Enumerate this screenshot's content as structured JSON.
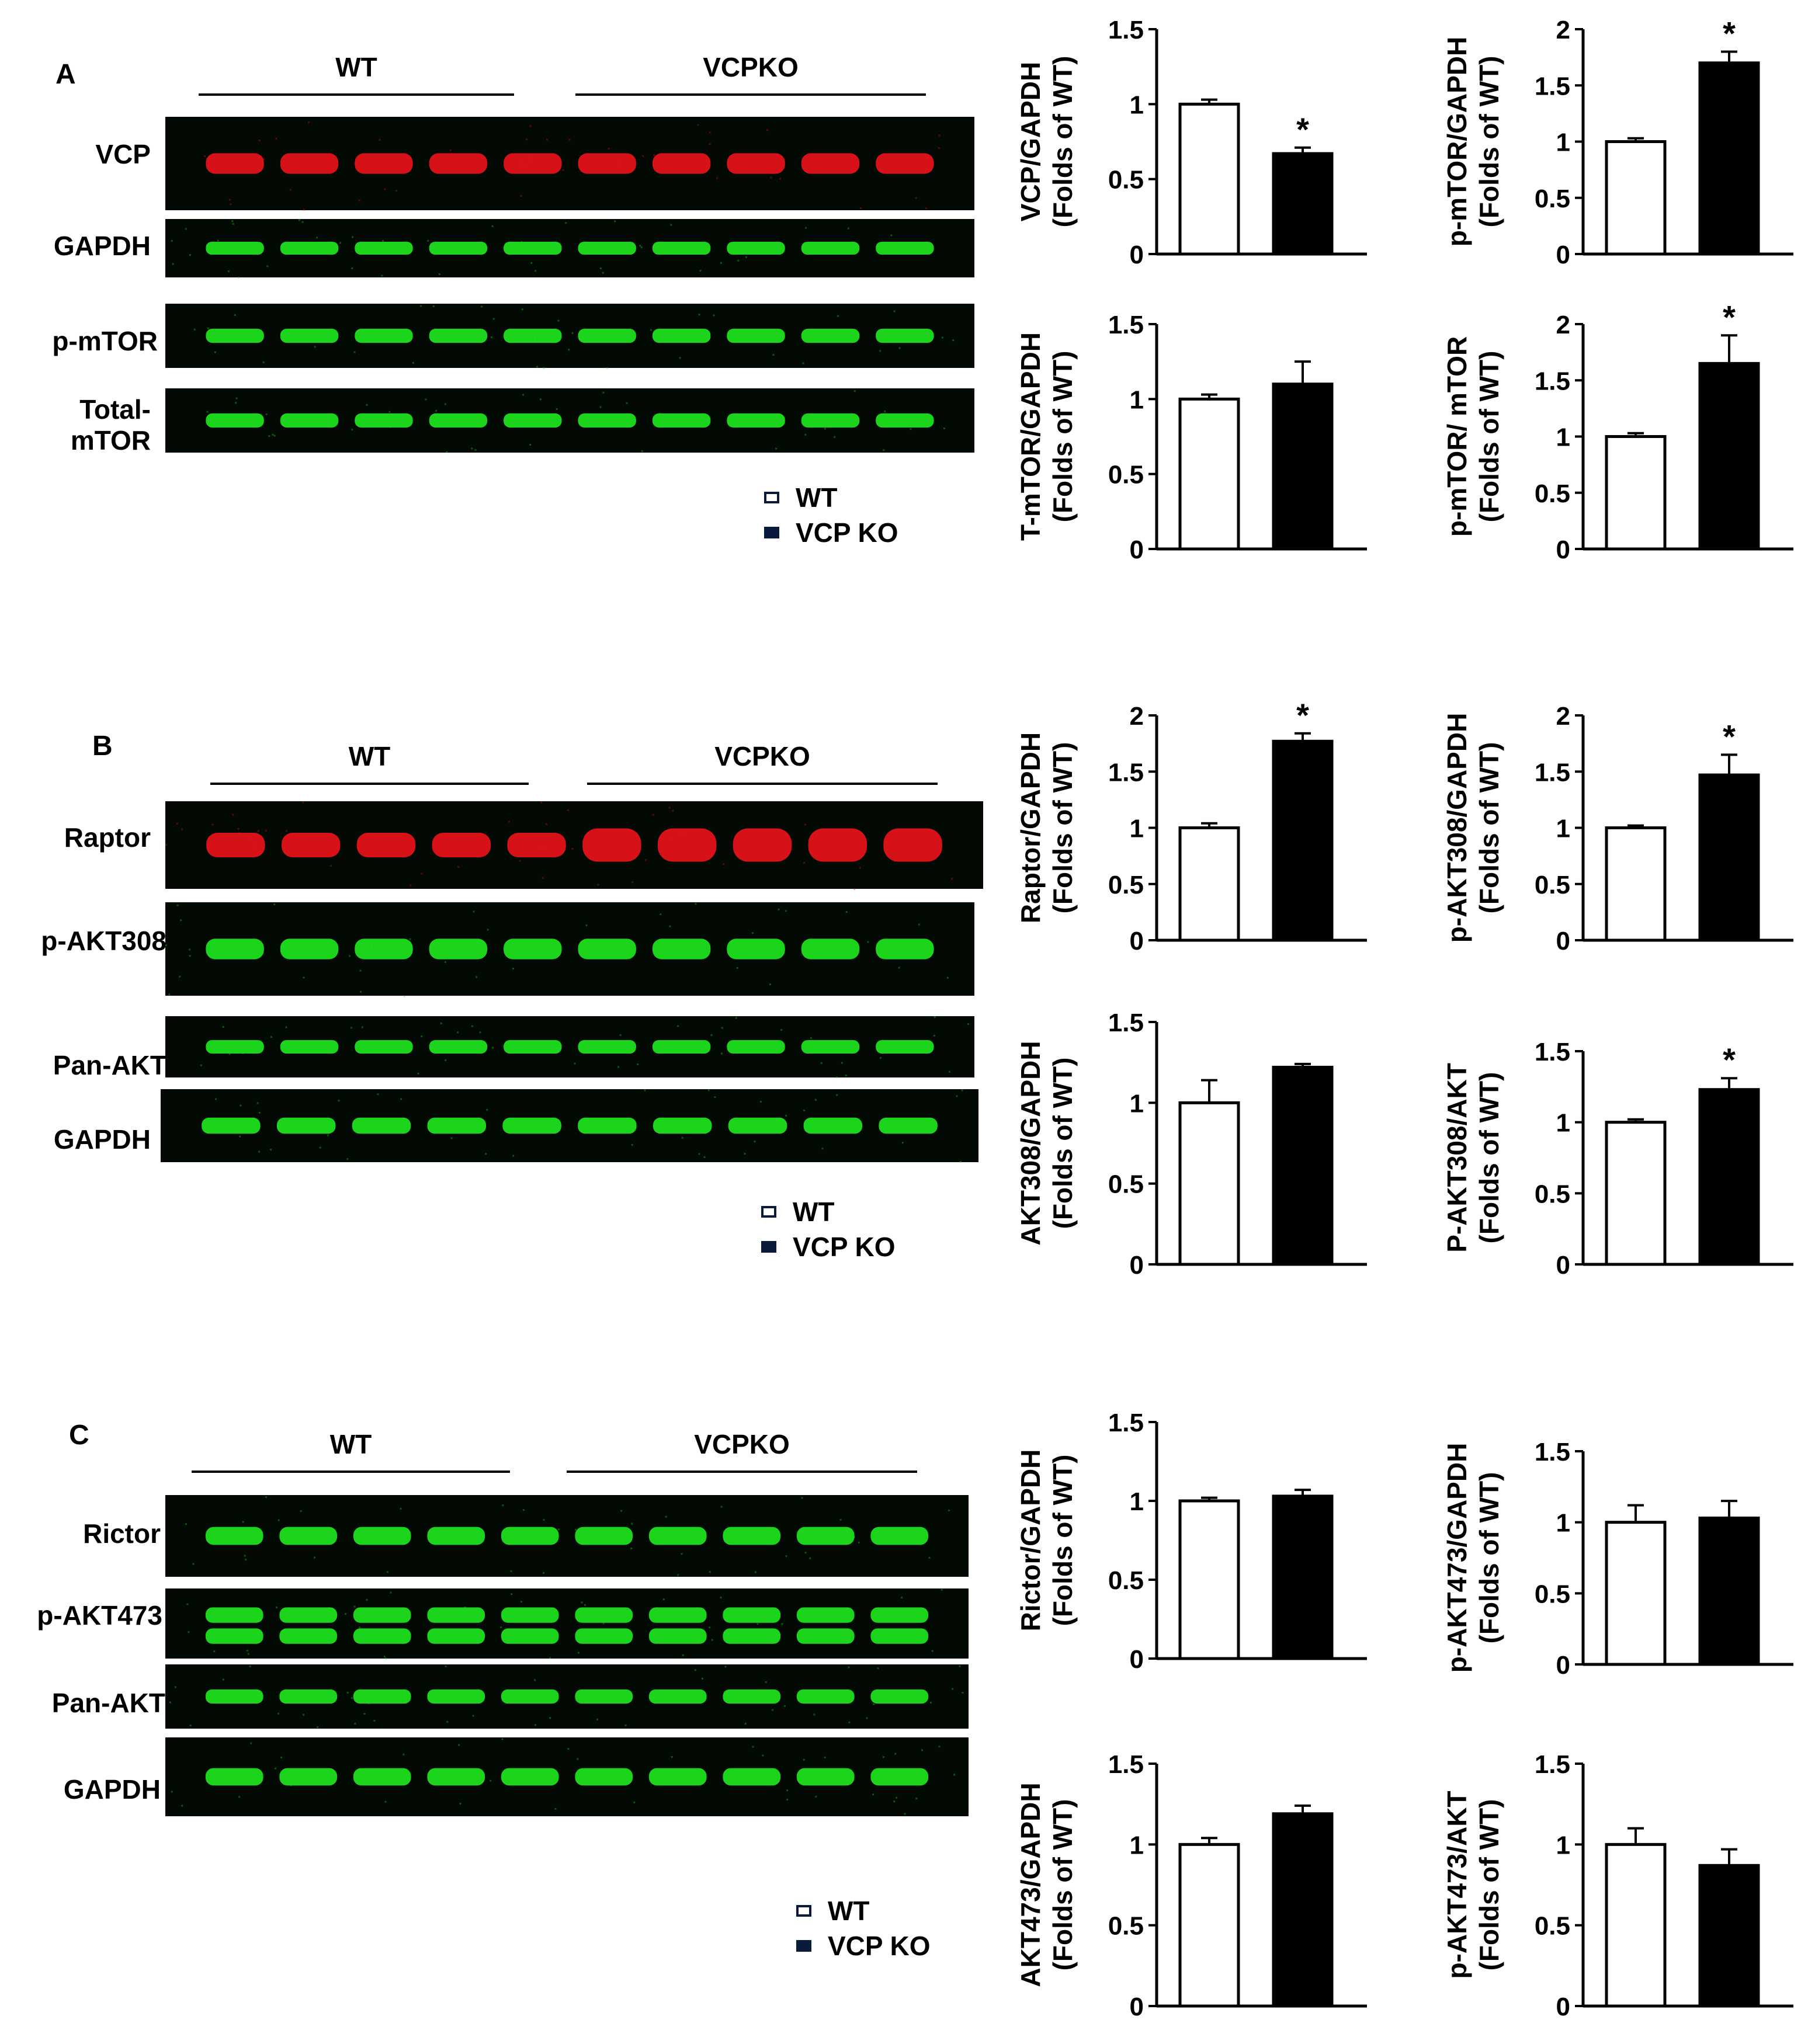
{
  "panels": [
    {
      "letter": "A",
      "groups": [
        "WT",
        "VCPKO"
      ],
      "blots": [
        {
          "label": "VCP",
          "color": "#e8141a"
        },
        {
          "label": "GAPDH",
          "color": "#1ee61e"
        },
        {
          "label": "p-mTOR",
          "color": "#1ee61e"
        },
        {
          "label": "Total-\nmTOR",
          "color": "#1ee61e"
        }
      ],
      "legend": [
        "WT",
        "VCP KO"
      ]
    },
    {
      "letter": "B",
      "groups": [
        "WT",
        "VCPKO"
      ],
      "blots": [
        {
          "label": "Raptor",
          "color": "#e8141a"
        },
        {
          "label": "p-AKT308",
          "color": "#1ee61e"
        },
        {
          "label": "Pan-AKT",
          "color": "#1ee61e"
        },
        {
          "label": "GAPDH",
          "color": "#1ee61e"
        }
      ],
      "legend": [
        "WT",
        "VCP KO"
      ]
    },
    {
      "letter": "C",
      "groups": [
        "WT",
        "VCPKO"
      ],
      "blots": [
        {
          "label": "Rictor",
          "color": "#1ee61e"
        },
        {
          "label": "p-AKT473",
          "color": "#1ee61e"
        },
        {
          "label": "Pan-AKT",
          "color": "#1ee61e"
        },
        {
          "label": "GAPDH",
          "color": "#1ee61e"
        }
      ],
      "legend": [
        "WT",
        "VCP KO"
      ]
    }
  ],
  "chart_data": [
    {
      "type": "bar",
      "ylabel": [
        "VCP/GAPDH",
        "(Folds of WT)"
      ],
      "ylim": [
        0,
        1.5
      ],
      "yticks": [
        "0",
        "0.5",
        "1",
        "1.5"
      ],
      "categories": [
        "WT",
        "VCP KO"
      ],
      "values": [
        1.0,
        0.67
      ],
      "errors": [
        0.03,
        0.04
      ],
      "significance": [
        "",
        "*"
      ]
    },
    {
      "type": "bar",
      "ylabel": [
        "p-mTOR/GAPDH",
        "(Folds of WT)"
      ],
      "ylim": [
        0,
        2
      ],
      "yticks": [
        "0",
        "0.5",
        "1",
        "1.5",
        "2"
      ],
      "categories": [
        "WT",
        "VCP KO"
      ],
      "values": [
        1.0,
        1.7
      ],
      "errors": [
        0.03,
        0.1
      ],
      "significance": [
        "",
        "*"
      ]
    },
    {
      "type": "bar",
      "ylabel": [
        "T-mTOR/GAPDH",
        "(Folds of WT)"
      ],
      "ylim": [
        0,
        1.5
      ],
      "yticks": [
        "0",
        "0.5",
        "1",
        "1.5"
      ],
      "categories": [
        "WT",
        "VCP KO"
      ],
      "values": [
        1.0,
        1.1
      ],
      "errors": [
        0.03,
        0.15
      ],
      "significance": [
        "",
        ""
      ]
    },
    {
      "type": "bar",
      "ylabel": [
        "p-mTOR/ mTOR",
        "(Folds of WT)"
      ],
      "ylim": [
        0,
        2
      ],
      "yticks": [
        "0",
        "0.5",
        "1",
        "1.5",
        "2"
      ],
      "categories": [
        "WT",
        "VCP KO"
      ],
      "values": [
        1.0,
        1.65
      ],
      "errors": [
        0.03,
        0.25
      ],
      "significance": [
        "",
        "*"
      ]
    },
    {
      "type": "bar",
      "ylabel": [
        "Raptor/GAPDH",
        "(Folds of WT)"
      ],
      "ylim": [
        0,
        2
      ],
      "yticks": [
        "0",
        "0.5",
        "1",
        "1.5",
        "2"
      ],
      "categories": [
        "WT",
        "VCP KO"
      ],
      "values": [
        1.0,
        1.77
      ],
      "errors": [
        0.04,
        0.07
      ],
      "significance": [
        "",
        "*"
      ]
    },
    {
      "type": "bar",
      "ylabel": [
        "p-AKT308/GAPDH",
        "(Folds of WT)"
      ],
      "ylim": [
        0,
        2
      ],
      "yticks": [
        "0",
        "0.5",
        "1",
        "1.5",
        "2"
      ],
      "categories": [
        "WT",
        "VCP KO"
      ],
      "values": [
        1.0,
        1.47
      ],
      "errors": [
        0.02,
        0.18
      ],
      "significance": [
        "",
        "*"
      ]
    },
    {
      "type": "bar",
      "ylabel": [
        "AKT308/GAPDH",
        "(Folds of WT)"
      ],
      "ylim": [
        0,
        1.5
      ],
      "yticks": [
        "0",
        "0.5",
        "1",
        "1.5"
      ],
      "categories": [
        "WT",
        "VCP KO"
      ],
      "values": [
        1.0,
        1.22
      ],
      "errors": [
        0.14,
        0.02
      ],
      "significance": [
        "",
        ""
      ]
    },
    {
      "type": "bar",
      "ylabel": [
        "P-AKT308/AKT",
        "(Folds of WT)"
      ],
      "ylim": [
        0,
        1.5
      ],
      "yticks": [
        "0",
        "0.5",
        "1",
        "1.5"
      ],
      "categories": [
        "WT",
        "VCP KO"
      ],
      "values": [
        1.0,
        1.23
      ],
      "errors": [
        0.02,
        0.08
      ],
      "significance": [
        "",
        "*"
      ]
    },
    {
      "type": "bar",
      "ylabel": [
        "Rictor/GAPDH",
        "(Folds of WT)"
      ],
      "ylim": [
        0,
        1.5
      ],
      "yticks": [
        "0",
        "0.5",
        "1",
        "1.5"
      ],
      "categories": [
        "WT",
        "VCP KO"
      ],
      "values": [
        1.0,
        1.03
      ],
      "errors": [
        0.02,
        0.04
      ],
      "significance": [
        "",
        ""
      ]
    },
    {
      "type": "bar",
      "ylabel": [
        "p-AKT473/GAPDH",
        "(Folds of WT)"
      ],
      "ylim": [
        0,
        1.5
      ],
      "yticks": [
        "0",
        "0.5",
        "1",
        "1.5"
      ],
      "categories": [
        "WT",
        "VCP KO"
      ],
      "values": [
        1.0,
        1.03
      ],
      "errors": [
        0.12,
        0.12
      ],
      "significance": [
        "",
        ""
      ]
    },
    {
      "type": "bar",
      "ylabel": [
        "AKT473/GAPDH",
        "(Folds of WT)"
      ],
      "ylim": [
        0,
        1.5
      ],
      "yticks": [
        "0",
        "0.5",
        "1",
        "1.5"
      ],
      "categories": [
        "WT",
        "VCP KO"
      ],
      "values": [
        1.0,
        1.19
      ],
      "errors": [
        0.04,
        0.05
      ],
      "significance": [
        "",
        ""
      ]
    },
    {
      "type": "bar",
      "ylabel": [
        "p-AKT473/AKT",
        "(Folds of WT)"
      ],
      "ylim": [
        0,
        1.5
      ],
      "yticks": [
        "0",
        "0.5",
        "1",
        "1.5"
      ],
      "categories": [
        "WT",
        "VCP KO"
      ],
      "values": [
        1.0,
        0.87
      ],
      "errors": [
        0.1,
        0.1
      ],
      "significance": [
        "",
        ""
      ]
    }
  ]
}
